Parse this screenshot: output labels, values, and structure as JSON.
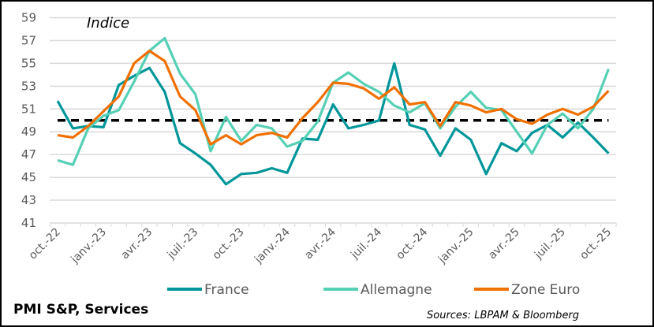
{
  "chart_data": {
    "type": "line",
    "title": "PMI S&P, Services",
    "ylabel": "Indice",
    "source": "Sources: LBPAM & Bloomberg",
    "ylim": [
      41,
      59
    ],
    "yticks": [
      41,
      43,
      45,
      47,
      49,
      51,
      53,
      55,
      57,
      59
    ],
    "grid": true,
    "legend_position": "bottom",
    "reference_line": {
      "value": 50,
      "style": "dashed",
      "color": "#000000"
    },
    "x": [
      "oct.-22",
      "nov.-22",
      "déc.-22",
      "janv.-23",
      "févr.-23",
      "mars-23",
      "avr.-23",
      "mai-23",
      "juin-23",
      "juil.-23",
      "août-23",
      "sept.-23",
      "oct.-23",
      "nov.-23",
      "déc.-23",
      "janv.-24",
      "févr.-24",
      "mars-24",
      "avr.-24",
      "mai-24",
      "juin-24",
      "juil.-24",
      "août-24",
      "sept.-24",
      "oct.-24",
      "nov.-24",
      "déc.-24",
      "janv.-25",
      "févr.-25",
      "mars-25",
      "avr.-25",
      "mai-25",
      "juin-25",
      "juil.-25",
      "août-25",
      "sept.-25",
      "oct.-25"
    ],
    "xtick_labels": [
      "oct.-22",
      "janv.-23",
      "avr.-23",
      "juil.-23",
      "oct.-23",
      "janv.-24",
      "avr.-24",
      "juil.-24",
      "oct.-24",
      "janv.-25",
      "avr.-25",
      "juil.-25",
      "oct.-25"
    ],
    "series": [
      {
        "name": "France",
        "color": "#00969A",
        "values": [
          51.7,
          49.3,
          49.5,
          49.4,
          53.1,
          53.9,
          54.6,
          52.5,
          48.0,
          47.1,
          46.1,
          44.4,
          45.3,
          45.4,
          45.8,
          45.4,
          48.4,
          48.3,
          51.4,
          49.3,
          49.6,
          50.0,
          55.0,
          49.6,
          49.2,
          46.9,
          49.3,
          48.3,
          45.3,
          48.0,
          47.3,
          48.9,
          49.6,
          48.5,
          49.8,
          48.5,
          47.1
        ]
      },
      {
        "name": "Allemagne",
        "color": "#55D0B4",
        "values": [
          46.5,
          46.1,
          49.3,
          50.4,
          50.9,
          53.4,
          56.1,
          57.2,
          54.1,
          52.3,
          47.3,
          50.3,
          48.2,
          49.6,
          49.3,
          47.7,
          48.2,
          49.9,
          53.3,
          54.2,
          53.2,
          52.5,
          51.3,
          50.7,
          51.5,
          49.3,
          51.2,
          52.5,
          51.1,
          50.9,
          49.0,
          47.1,
          49.6,
          50.6,
          49.3,
          51.0,
          54.5
        ]
      },
      {
        "name": "Zone Euro",
        "color": "#F07000",
        "values": [
          48.7,
          48.5,
          49.5,
          50.8,
          52.1,
          55.0,
          56.1,
          55.2,
          52.1,
          50.9,
          47.9,
          48.7,
          47.9,
          48.7,
          48.9,
          48.5,
          50.2,
          51.6,
          53.3,
          53.2,
          52.8,
          51.9,
          52.9,
          51.4,
          51.6,
          49.5,
          51.6,
          51.3,
          50.7,
          51.0,
          50.1,
          49.7,
          50.5,
          51.0,
          50.5,
          51.2,
          52.6
        ]
      }
    ]
  }
}
